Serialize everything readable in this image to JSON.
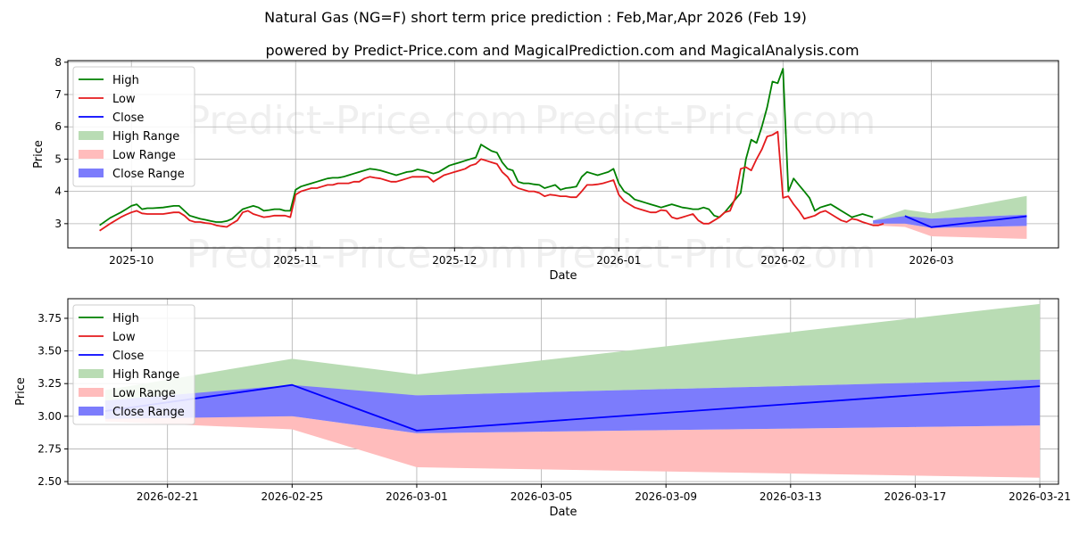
{
  "chart_data": [
    {
      "type": "line",
      "title": "Natural Gas (NG=F) short term price prediction : Feb,Mar,Apr 2026 (Feb 19)",
      "subtitle": "powered by Predict-Price.com and MagicalPrediction.com and MagicalAnalysis.com",
      "xlabel": "Date",
      "ylabel": "Price",
      "ylim": [
        2.25,
        8.05
      ],
      "xlim_days": [
        -6,
        181
      ],
      "x_epoch": "2025-09-25",
      "x_ticks": [
        {
          "day": 6,
          "label": "2025-10"
        },
        {
          "day": 37,
          "label": "2025-11"
        },
        {
          "day": 67,
          "label": "2025-12"
        },
        {
          "day": 98,
          "label": "2026-01"
        },
        {
          "day": 129,
          "label": "2026-02"
        },
        {
          "day": 157,
          "label": "2026-03"
        }
      ],
      "y_ticks": [
        3,
        4,
        5,
        6,
        7,
        8
      ],
      "legend": {
        "position": "top-left",
        "entries": [
          {
            "label": "High",
            "kind": "line",
            "color": "#008000"
          },
          {
            "label": "Low",
            "kind": "line",
            "color": "#e41a1c"
          },
          {
            "label": "Close",
            "kind": "line",
            "color": "#0000ff"
          },
          {
            "label": "High Range",
            "kind": "patch",
            "color": "#b9dcb4"
          },
          {
            "label": "Low Range",
            "kind": "patch",
            "color": "#ffbcbc"
          },
          {
            "label": "Close Range",
            "kind": "patch",
            "color": "#7c7cfc"
          }
        ]
      },
      "watermarks": [
        "Predict-Price.com",
        "Predict-Price.com",
        "Predict-Price.com",
        "Predict-Price.com"
      ],
      "series": [
        {
          "name": "High",
          "color": "#008000",
          "x": [
            0,
            2,
            4,
            5,
            6,
            7,
            8,
            9,
            10,
            12,
            14,
            15,
            16,
            17,
            18,
            19,
            20,
            21,
            22,
            23,
            24,
            25,
            26,
            27,
            28,
            29,
            30,
            31,
            32,
            33,
            34,
            35,
            36,
            37,
            38,
            39,
            40,
            41,
            42,
            43,
            44,
            45,
            46,
            47,
            48,
            49,
            50,
            51,
            52,
            53,
            54,
            55,
            56,
            57,
            58,
            59,
            60,
            61,
            62,
            63,
            64,
            65,
            66,
            67,
            68,
            69,
            70,
            71,
            72,
            73,
            74,
            75,
            76,
            77,
            78,
            79,
            80,
            81,
            82,
            83,
            84,
            85,
            86,
            87,
            88,
            89,
            90,
            91,
            92,
            93,
            94,
            95,
            96,
            97,
            98,
            99,
            100,
            101,
            102,
            103,
            104,
            105,
            106,
            107,
            108,
            109,
            110,
            111,
            112,
            113,
            114,
            115,
            116,
            117,
            118,
            119,
            120,
            121,
            122,
            123,
            124,
            125,
            126,
            127,
            128,
            129,
            130,
            131,
            132,
            133,
            134,
            135,
            136,
            137,
            138,
            139,
            140,
            141,
            142,
            143,
            144,
            145,
            146
          ],
          "y": [
            2.95,
            3.18,
            3.35,
            3.45,
            3.55,
            3.6,
            3.45,
            3.48,
            3.48,
            3.5,
            3.55,
            3.55,
            3.4,
            3.25,
            3.2,
            3.15,
            3.12,
            3.08,
            3.05,
            3.05,
            3.08,
            3.15,
            3.3,
            3.45,
            3.5,
            3.55,
            3.5,
            3.4,
            3.42,
            3.45,
            3.45,
            3.4,
            3.4,
            4.05,
            4.15,
            4.2,
            4.25,
            4.3,
            4.35,
            4.4,
            4.42,
            4.42,
            4.45,
            4.5,
            4.55,
            4.6,
            4.65,
            4.7,
            4.68,
            4.65,
            4.6,
            4.55,
            4.5,
            4.55,
            4.6,
            4.62,
            4.68,
            4.65,
            4.6,
            4.55,
            4.6,
            4.7,
            4.8,
            4.85,
            4.9,
            4.95,
            5.0,
            5.05,
            5.45,
            5.35,
            5.25,
            5.2,
            4.9,
            4.7,
            4.65,
            4.3,
            4.25,
            4.25,
            4.22,
            4.2,
            4.1,
            4.15,
            4.2,
            4.05,
            4.1,
            4.12,
            4.15,
            4.45,
            4.6,
            4.55,
            4.5,
            4.55,
            4.6,
            4.7,
            4.25,
            4.0,
            3.9,
            3.75,
            3.7,
            3.65,
            3.6,
            3.55,
            3.5,
            3.55,
            3.6,
            3.55,
            3.5,
            3.48,
            3.45,
            3.45,
            3.5,
            3.45,
            3.25,
            3.2,
            3.35,
            3.55,
            3.75,
            3.95,
            5.0,
            5.6,
            5.5,
            6.0,
            6.6,
            7.4,
            7.35,
            7.8,
            4.0,
            4.4,
            4.2,
            4.0,
            3.8,
            3.4,
            3.5,
            3.55,
            3.6,
            3.5,
            3.4,
            3.3,
            3.2,
            3.25,
            3.3,
            3.25,
            3.2
          ]
        },
        {
          "name": "Low",
          "color": "#e41a1c",
          "x": [
            0,
            2,
            4,
            5,
            6,
            7,
            8,
            9,
            10,
            12,
            14,
            15,
            16,
            17,
            18,
            19,
            20,
            21,
            22,
            23,
            24,
            25,
            26,
            27,
            28,
            29,
            30,
            31,
            32,
            33,
            34,
            35,
            36,
            37,
            38,
            39,
            40,
            41,
            42,
            43,
            44,
            45,
            46,
            47,
            48,
            49,
            50,
            51,
            52,
            53,
            54,
            55,
            56,
            57,
            58,
            59,
            60,
            61,
            62,
            63,
            64,
            65,
            66,
            67,
            68,
            69,
            70,
            71,
            72,
            73,
            74,
            75,
            76,
            77,
            78,
            79,
            80,
            81,
            82,
            83,
            84,
            85,
            86,
            87,
            88,
            89,
            90,
            91,
            92,
            93,
            94,
            95,
            96,
            97,
            98,
            99,
            100,
            101,
            102,
            103,
            104,
            105,
            106,
            107,
            108,
            109,
            110,
            111,
            112,
            113,
            114,
            115,
            116,
            117,
            118,
            119,
            120,
            121,
            122,
            123,
            124,
            125,
            126,
            127,
            128,
            129,
            130,
            131,
            132,
            133,
            134,
            135,
            136,
            137,
            138,
            139,
            140,
            141,
            142,
            143,
            144,
            145,
            146,
            147,
            148
          ],
          "y": [
            2.78,
            3.0,
            3.2,
            3.28,
            3.35,
            3.4,
            3.32,
            3.3,
            3.3,
            3.3,
            3.35,
            3.35,
            3.25,
            3.1,
            3.05,
            3.05,
            3.02,
            3.0,
            2.95,
            2.92,
            2.9,
            3.0,
            3.1,
            3.35,
            3.4,
            3.3,
            3.25,
            3.2,
            3.22,
            3.25,
            3.25,
            3.25,
            3.2,
            3.9,
            4.0,
            4.05,
            4.1,
            4.1,
            4.15,
            4.2,
            4.2,
            4.25,
            4.25,
            4.25,
            4.3,
            4.3,
            4.4,
            4.45,
            4.42,
            4.4,
            4.35,
            4.3,
            4.3,
            4.35,
            4.4,
            4.45,
            4.45,
            4.45,
            4.45,
            4.3,
            4.4,
            4.5,
            4.55,
            4.6,
            4.65,
            4.7,
            4.8,
            4.85,
            5.0,
            4.95,
            4.9,
            4.85,
            4.6,
            4.45,
            4.2,
            4.1,
            4.05,
            4.0,
            4.0,
            3.95,
            3.85,
            3.9,
            3.88,
            3.85,
            3.85,
            3.82,
            3.82,
            4.0,
            4.2,
            4.2,
            4.22,
            4.25,
            4.3,
            4.35,
            3.9,
            3.7,
            3.6,
            3.5,
            3.45,
            3.4,
            3.35,
            3.35,
            3.42,
            3.4,
            3.2,
            3.15,
            3.2,
            3.25,
            3.3,
            3.1,
            3.0,
            3.0,
            3.1,
            3.2,
            3.35,
            3.4,
            3.8,
            4.7,
            4.75,
            4.65,
            5.0,
            5.3,
            5.7,
            5.75,
            5.85,
            3.8,
            3.85,
            3.6,
            3.4,
            3.15,
            3.2,
            3.25,
            3.35,
            3.4,
            3.3,
            3.2,
            3.1,
            3.05,
            3.15,
            3.12,
            3.05,
            3.0,
            2.95,
            2.95,
            3.0
          ]
        },
        {
          "name": "Close",
          "color": "#0000ff",
          "x": [
            152,
            157,
            175
          ],
          "y": [
            3.24,
            2.89,
            3.23
          ]
        }
      ],
      "bands": [
        {
          "name": "High Range",
          "color": "#b9dcb4",
          "x": [
            146,
            152,
            157,
            175
          ],
          "upper": [
            3.1,
            3.44,
            3.32,
            3.86
          ],
          "lower": [
            3.0,
            3.2,
            3.16,
            3.28
          ]
        },
        {
          "name": "Low Range",
          "color": "#ffbcbc",
          "x": [
            146,
            152,
            157,
            175
          ],
          "upper": [
            3.0,
            3.0,
            2.87,
            2.93
          ],
          "lower": [
            2.95,
            2.9,
            2.61,
            2.53
          ]
        },
        {
          "name": "Close Range",
          "color": "#7c7cfc",
          "x": [
            146,
            152,
            157,
            175
          ],
          "upper": [
            3.1,
            3.24,
            3.16,
            3.28
          ],
          "lower": [
            3.0,
            3.0,
            2.87,
            2.93
          ]
        }
      ]
    },
    {
      "type": "line",
      "xlabel": "Date",
      "ylabel": "Price",
      "ylim": [
        2.48,
        3.9
      ],
      "xlim_days": [
        -1.2,
        30.6
      ],
      "x_epoch": "2026-02-19",
      "x_ticks": [
        {
          "day": 2,
          "label": "2026-02-21"
        },
        {
          "day": 6,
          "label": "2026-02-25"
        },
        {
          "day": 10,
          "label": "2026-03-01"
        },
        {
          "day": 14,
          "label": "2026-03-05"
        },
        {
          "day": 18,
          "label": "2026-03-09"
        },
        {
          "day": 22,
          "label": "2026-03-13"
        },
        {
          "day": 26,
          "label": "2026-03-17"
        },
        {
          "day": 30,
          "label": "2026-03-21"
        }
      ],
      "y_ticks": [
        "2.50",
        "2.75",
        "3.00",
        "3.25",
        "3.50",
        "3.75"
      ],
      "legend": {
        "position": "top-left",
        "entries": [
          {
            "label": "High",
            "kind": "line",
            "color": "#008000"
          },
          {
            "label": "Low",
            "kind": "line",
            "color": "#e41a1c"
          },
          {
            "label": "Close",
            "kind": "line",
            "color": "#0000ff"
          },
          {
            "label": "High Range",
            "kind": "patch",
            "color": "#b9dcb4"
          },
          {
            "label": "Low Range",
            "kind": "patch",
            "color": "#ffbcbc"
          },
          {
            "label": "Close Range",
            "kind": "patch",
            "color": "#7c7cfc"
          }
        ]
      },
      "watermarks": [
        "Predict-Price.com",
        "Predict-Price.com"
      ],
      "series": [
        {
          "name": "Close",
          "color": "#0000ff",
          "x": [
            0,
            6,
            10,
            30
          ],
          "y": [
            3.04,
            3.24,
            2.89,
            3.23
          ]
        }
      ],
      "bands": [
        {
          "name": "High Range",
          "color": "#b9dcb4",
          "x": [
            0,
            6,
            10,
            30
          ],
          "upper": [
            3.2,
            3.44,
            3.32,
            3.86
          ],
          "lower": [
            3.03,
            3.22,
            3.16,
            3.28
          ]
        },
        {
          "name": "Low Range",
          "color": "#ffbcbc",
          "x": [
            0,
            6,
            10,
            30
          ],
          "upper": [
            3.0,
            3.0,
            2.87,
            2.93
          ],
          "lower": [
            2.96,
            2.9,
            2.61,
            2.53
          ]
        },
        {
          "name": "Close Range",
          "color": "#7c7cfc",
          "x": [
            0,
            6,
            10,
            30
          ],
          "upper": [
            3.12,
            3.24,
            3.16,
            3.28
          ],
          "lower": [
            2.98,
            3.0,
            2.87,
            2.93
          ]
        }
      ]
    }
  ]
}
